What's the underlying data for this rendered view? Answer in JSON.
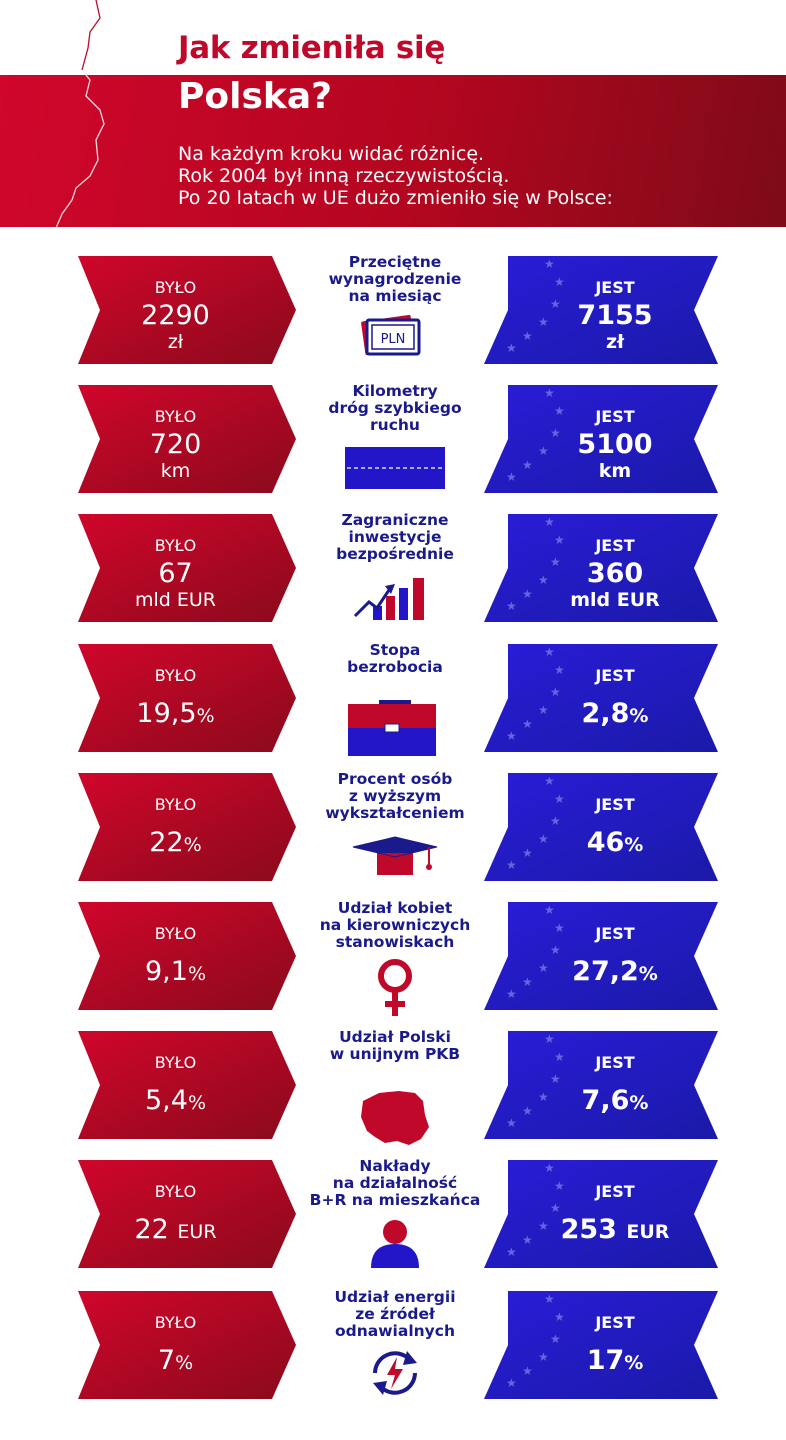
{
  "header": {
    "title_line1": "Jak zmieniła się",
    "title_line2": "Polska?",
    "subtitle_lines": [
      "Na każdym kroku widać różnicę.",
      "Rok 2004 był inną rzeczywistością.",
      "Po 20 latach w UE dużo zmieniło się w Polsce:"
    ]
  },
  "labels": {
    "was": "BYŁO",
    "is": "JEST"
  },
  "rows": [
    {
      "title_lines": [
        "Przeciętne",
        "wynagrodzenie",
        "na miesiąc"
      ],
      "was_value": "2290",
      "was_unit": "zł",
      "is_value": "7155",
      "is_unit": "zł",
      "icon": "banknote-pln-icon",
      "icon_text": "PLN"
    },
    {
      "title_lines": [
        "Kilometry",
        "dróg szybkiego",
        "ruchu"
      ],
      "was_value": "720",
      "was_unit": "km",
      "is_value": "5100",
      "is_unit": "km",
      "icon": "highway-icon"
    },
    {
      "title_lines": [
        "Zagraniczne",
        "inwestycje",
        "bezpośrednie"
      ],
      "was_value": "67",
      "was_unit": "mld EUR",
      "is_value": "360",
      "is_unit": "mld EUR",
      "icon": "bar-chart-growth-icon"
    },
    {
      "title_lines": [
        "Stopa",
        "bezrobocia"
      ],
      "was_value": "19,5",
      "was_unit": "%",
      "is_value": "2,8",
      "is_unit": "%",
      "icon": "briefcase-icon"
    },
    {
      "title_lines": [
        "Procent osób",
        "z wyższym",
        "wykształceniem"
      ],
      "was_value": "22",
      "was_unit": "%",
      "is_value": "46",
      "is_unit": "%",
      "icon": "graduation-cap-icon"
    },
    {
      "title_lines": [
        "Udział kobiet",
        "na kierowniczych",
        "stanowiskach"
      ],
      "was_value": "9,1",
      "was_unit": "%",
      "is_value": "27,2",
      "is_unit": "%",
      "icon": "female-symbol-icon"
    },
    {
      "title_lines": [
        "Udział Polski",
        "w unijnym PKB"
      ],
      "was_value": "5,4",
      "was_unit": "%",
      "is_value": "7,6",
      "is_unit": "%",
      "icon": "poland-map-icon"
    },
    {
      "title_lines": [
        "Nakłady",
        "na działalność",
        "B+R na mieszkańca"
      ],
      "was_value": "22",
      "was_unit": "EUR",
      "is_value": "253",
      "is_unit": "EUR",
      "icon": "person-icon"
    },
    {
      "title_lines": [
        "Udział energii",
        "ze źródeł",
        "odnawialnych"
      ],
      "was_value": "7",
      "was_unit": "%",
      "is_value": "17",
      "is_unit": "%",
      "icon": "renewable-energy-icon"
    }
  ],
  "colors": {
    "red": "#b8081f",
    "dark_red": "#7e0b18",
    "blue": "#2216c8",
    "dark_blue": "#1a1a8c",
    "star": "#6a63e0"
  }
}
